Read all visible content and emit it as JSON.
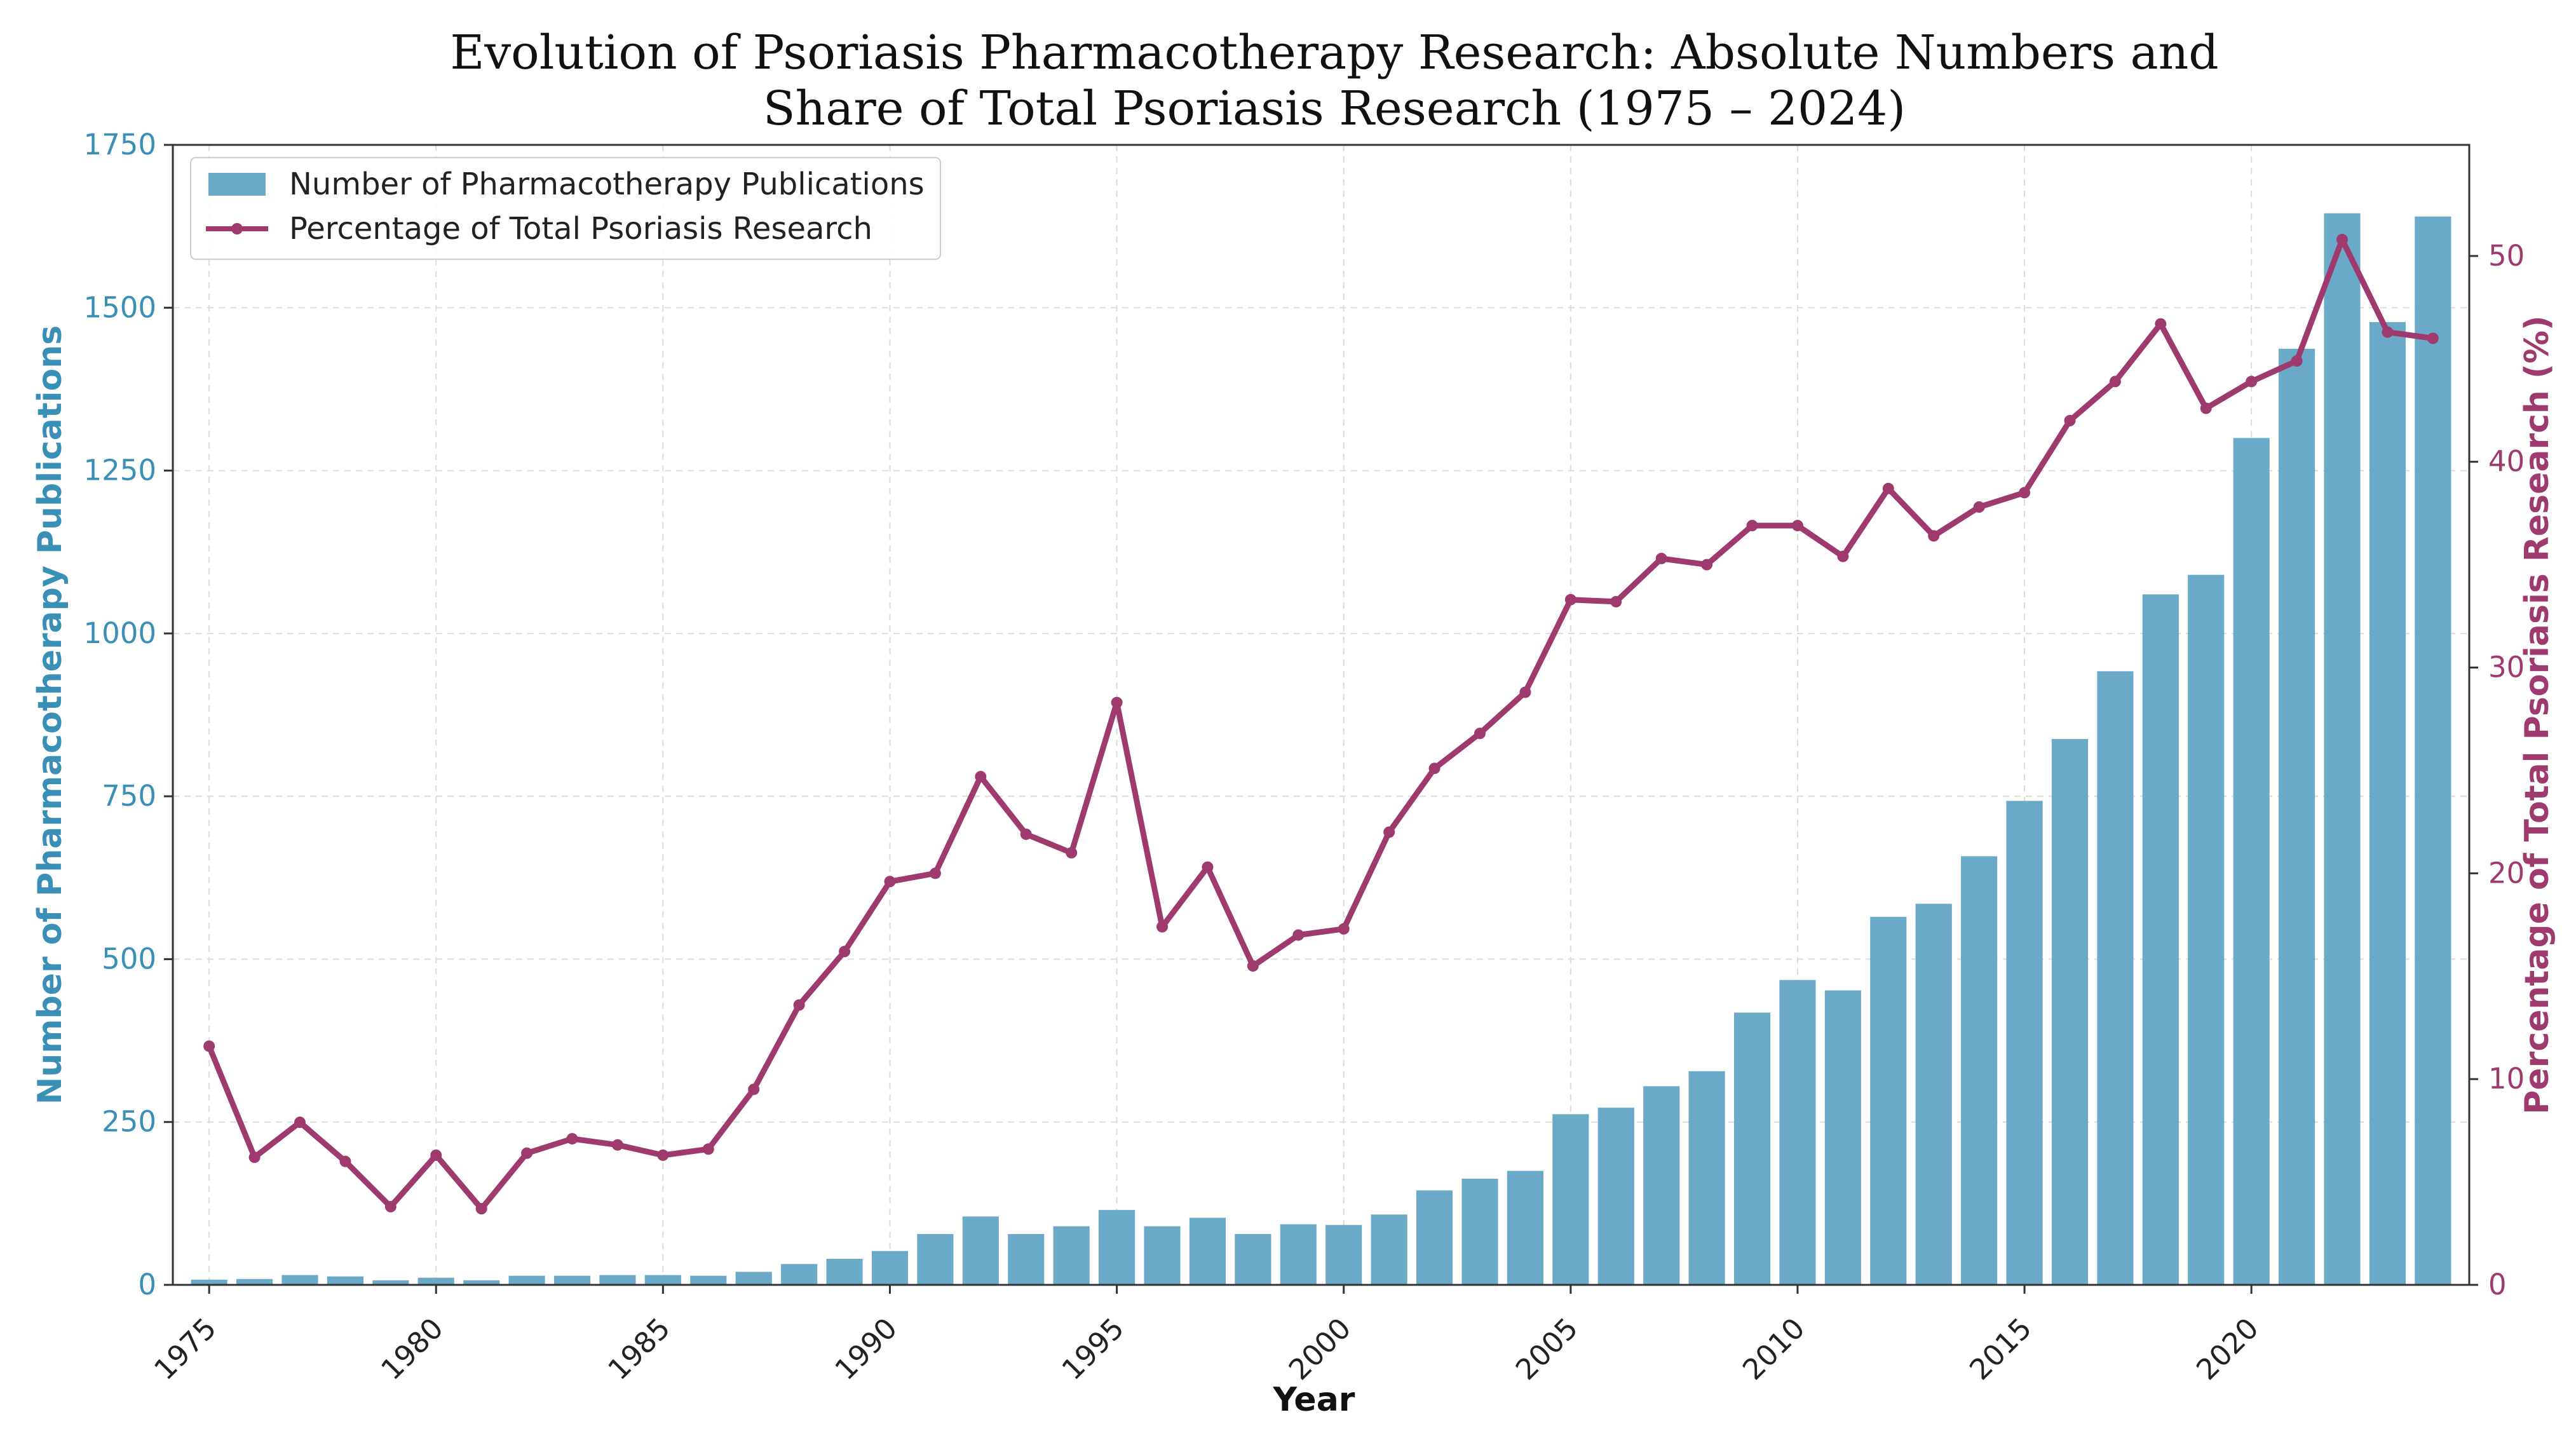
{
  "chart_data": {
    "type": "bar+line",
    "title_line1": "Evolution of Psoriasis Pharmacotherapy Research: Absolute Numbers and",
    "title_line2": "Share of Total Psoriasis Research (1975 – 2024)",
    "xlabel": "Year",
    "ylabel_left": "Number of Pharmacotherapy Publications",
    "ylabel_right": "Percentage of Total Psoriasis Research (%)",
    "xlim": [
      1974.2,
      2024.8
    ],
    "ylim_left": [
      0,
      1750
    ],
    "ylim_right": [
      0,
      55.4
    ],
    "x_ticks": [
      "1975",
      "1980",
      "1985",
      "1990",
      "1995",
      "2000",
      "2005",
      "2010",
      "2015",
      "2020"
    ],
    "y_ticks_left": [
      "0",
      "250",
      "500",
      "750",
      "1000",
      "1250",
      "1500",
      "1750"
    ],
    "y_ticks_right": [
      "0",
      "10",
      "20",
      "30",
      "40",
      "50"
    ],
    "grid": true,
    "legend_position": "upper-left",
    "colors": {
      "bars": "#6aaac8",
      "line": "#9e3a6e",
      "left_axis": "#3a8fb7",
      "right_axis": "#9e3a6e"
    },
    "years": [
      1975,
      1976,
      1977,
      1978,
      1979,
      1980,
      1981,
      1982,
      1983,
      1984,
      1985,
      1986,
      1987,
      1988,
      1989,
      1990,
      1991,
      1992,
      1993,
      1994,
      1995,
      1996,
      1997,
      1998,
      1999,
      2000,
      2001,
      2002,
      2003,
      2004,
      2005,
      2006,
      2007,
      2008,
      2009,
      2010,
      2011,
      2012,
      2013,
      2014,
      2015,
      2016,
      2017,
      2018,
      2019,
      2020,
      2021,
      2022,
      2023,
      2024
    ],
    "series": [
      {
        "name": "Number of Pharmacotherapy Publications",
        "kind": "bar",
        "values": [
          8,
          9,
          15,
          13,
          7,
          11,
          7,
          14,
          14,
          15,
          15,
          14,
          20,
          32,
          40,
          52,
          78,
          105,
          78,
          90,
          115,
          90,
          103,
          78,
          93,
          92,
          108,
          145,
          163,
          175,
          262,
          272,
          305,
          328,
          418,
          468,
          452,
          565,
          585,
          658,
          743,
          838,
          942,
          1060,
          1090,
          1300,
          1437,
          1645,
          1478,
          1640
        ]
      },
      {
        "name": "Percentage of Total Psoriasis Research",
        "kind": "line",
        "values": [
          11.6,
          6.2,
          7.9,
          6.0,
          3.8,
          6.3,
          3.7,
          6.4,
          7.1,
          6.8,
          6.3,
          6.6,
          9.5,
          13.6,
          16.2,
          19.6,
          20.0,
          24.7,
          21.9,
          21.0,
          28.3,
          17.4,
          20.3,
          15.5,
          17.0,
          17.3,
          22.0,
          25.1,
          26.8,
          28.8,
          33.3,
          33.2,
          35.3,
          35.0,
          36.9,
          36.9,
          35.4,
          38.7,
          36.4,
          37.8,
          38.5,
          42.0,
          43.9,
          46.7,
          42.6,
          43.9,
          44.9,
          50.8,
          46.3,
          46.0
        ]
      }
    ]
  }
}
